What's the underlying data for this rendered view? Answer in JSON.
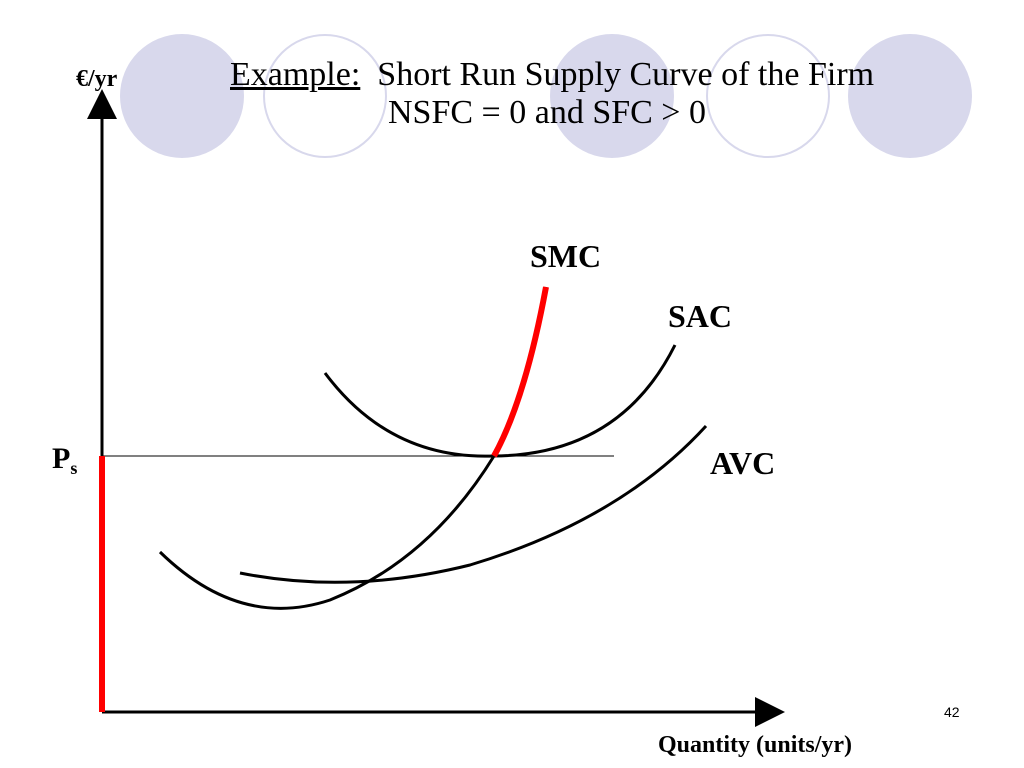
{
  "title": {
    "prefix": "Example:",
    "line1_rest": "  Short Run Supply Curve of the Firm",
    "line2": "NSFC = 0 and SFC > 0"
  },
  "axes": {
    "y_label": "€/yr",
    "x_label": "Quantity (units/yr)"
  },
  "price_label": {
    "main": "P",
    "sub": "s"
  },
  "curves": {
    "smc": "SMC",
    "sac": "SAC",
    "avc": "AVC"
  },
  "page_number": "42",
  "colors": {
    "supply_highlight": "#ff0000",
    "curve": "#000000",
    "decor_circle": "#d8d8ec"
  }
}
